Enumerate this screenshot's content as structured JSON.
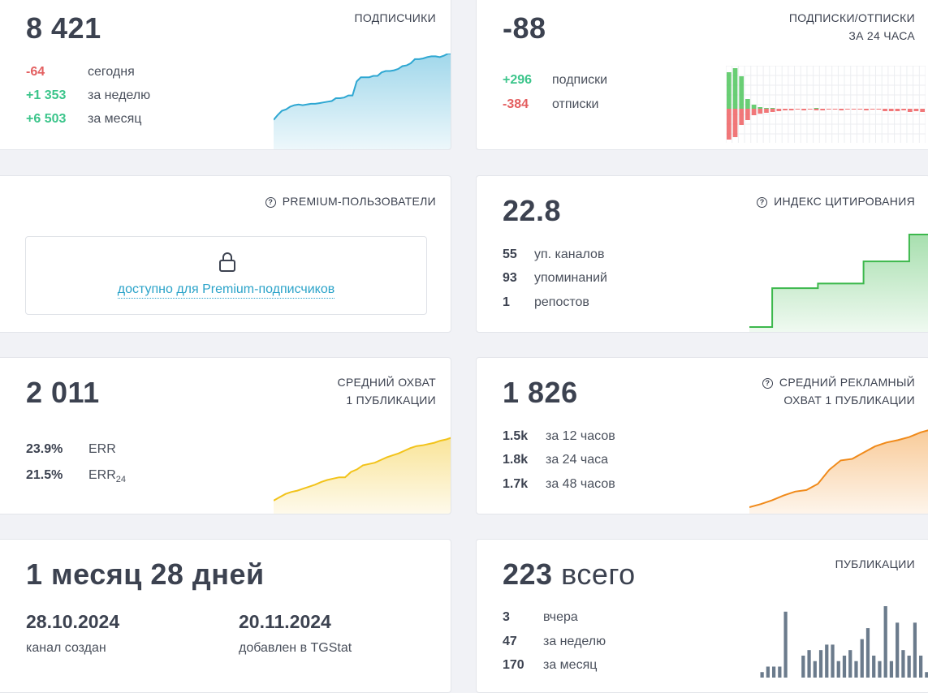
{
  "subscribers": {
    "title": "ПОДПИСЧИКИ",
    "value": "8 421",
    "rows": [
      {
        "value": "-64",
        "label": "сегодня"
      },
      {
        "value": "+1 353",
        "label": "за неделю"
      },
      {
        "value": "+6 503",
        "label": "за месяц"
      }
    ],
    "chart_data": {
      "type": "area",
      "values": [
        0.05,
        0.12,
        0.18,
        0.2,
        0.24,
        0.26,
        0.27,
        0.26,
        0.27,
        0.28,
        0.28,
        0.29,
        0.3,
        0.31,
        0.32,
        0.36,
        0.36,
        0.37,
        0.4,
        0.4,
        0.6,
        0.66,
        0.66,
        0.66,
        0.68,
        0.68,
        0.73,
        0.75,
        0.75,
        0.76,
        0.78,
        0.82,
        0.83,
        0.86,
        0.92,
        0.92,
        0.93,
        0.95,
        0.96,
        0.96,
        0.95,
        0.97,
        1.0,
        1.0
      ],
      "color": "#2ea7d2"
    }
  },
  "subs_unsubs": {
    "title_line1": "ПОДПИСКИ/ОТПИСКИ",
    "title_line2": "ЗА 24 ЧАСА",
    "value": "-88",
    "rows": [
      {
        "value": "+296",
        "label": "подписки"
      },
      {
        "value": "-384",
        "label": "отписки"
      }
    ],
    "chart_data": {
      "type": "bar",
      "positive": [
        45,
        50,
        40,
        12,
        5,
        2,
        1,
        1,
        0,
        0,
        0,
        0,
        0,
        0,
        1,
        0,
        0,
        0,
        0,
        0,
        0,
        0,
        0,
        0,
        0,
        0,
        0,
        0,
        0,
        0,
        0,
        0
      ],
      "negative": [
        -38,
        -35,
        -20,
        -14,
        -8,
        -6,
        -5,
        -4,
        -3,
        -2,
        -2,
        -1,
        -2,
        -1,
        -2,
        -2,
        -1,
        -1,
        -2,
        -1,
        -1,
        -1,
        -2,
        -1,
        -1,
        -3,
        -3,
        -3,
        -2,
        -4,
        -3,
        -4
      ],
      "pos_color": "#4fc65c",
      "neg_color": "#ef5f62"
    }
  },
  "premium": {
    "title": "PREMIUM-ПОЛЬЗОВАТЕЛИ",
    "link": "доступно для Premium-подписчиков",
    "lock_icon": "lock-icon"
  },
  "citation": {
    "title": "ИНДЕКС ЦИТИРОВАНИЯ",
    "value": "22.8",
    "rows": [
      {
        "value": "55",
        "label": "уп. каналов"
      },
      {
        "value": "93",
        "label": "упоминаний"
      },
      {
        "value": "1",
        "label": "репостов"
      }
    ],
    "chart_data": {
      "type": "area",
      "values": [
        0.0,
        0.0,
        0.0,
        0.42,
        0.42,
        0.42,
        0.42,
        0.42,
        0.42,
        0.47,
        0.47,
        0.47,
        0.47,
        0.47,
        0.47,
        0.71,
        0.71,
        0.71,
        0.71,
        0.71,
        0.71,
        1.0,
        1.0,
        1.0,
        1.0
      ],
      "step": true,
      "color": "#3cb84c"
    }
  },
  "reach": {
    "title_line1": "СРЕДНИЙ ОХВАТ",
    "title_line2": "1 ПУБЛИКАЦИИ",
    "value": "2 011",
    "rows": [
      {
        "value": "23.9%",
        "label": "ERR",
        "sub": ""
      },
      {
        "value": "21.5%",
        "label": "ERR",
        "sub": "24"
      }
    ],
    "chart_data": {
      "type": "area",
      "values": [
        0.05,
        0.1,
        0.15,
        0.18,
        0.2,
        0.23,
        0.26,
        0.29,
        0.33,
        0.36,
        0.38,
        0.4,
        0.4,
        0.48,
        0.52,
        0.58,
        0.6,
        0.62,
        0.66,
        0.7,
        0.73,
        0.76,
        0.8,
        0.84,
        0.87,
        0.88,
        0.9,
        0.92,
        0.95,
        0.97,
        1.0
      ],
      "color": "#f2c31a"
    }
  },
  "ad_reach": {
    "title_line1": "СРЕДНИЙ РЕКЛАМНЫЙ",
    "title_line2": "ОХВАТ 1 ПУБЛИКАЦИИ",
    "value": "1 826",
    "rows": [
      {
        "value": "1.5k",
        "label": "за 12 часов"
      },
      {
        "value": "1.8k",
        "label": "за 24 часа"
      },
      {
        "value": "1.7k",
        "label": "за 48 часов"
      }
    ],
    "chart_data": {
      "type": "area",
      "values": [
        0.0,
        0.04,
        0.09,
        0.15,
        0.2,
        0.22,
        0.3,
        0.48,
        0.6,
        0.62,
        0.7,
        0.78,
        0.83,
        0.86,
        0.9,
        0.96,
        1.0
      ],
      "color": "#f08a1a"
    }
  },
  "age": {
    "value": "1 месяц 28 дней",
    "created_date": "28.10.2024",
    "created_label": "канал создан",
    "added_date": "20.11.2024",
    "added_label": "добавлен в TGStat"
  },
  "publications": {
    "title": "ПУБЛИКАЦИИ",
    "value_num": "223",
    "value_word": "всего",
    "rows": [
      {
        "value": "3",
        "label": "вчера"
      },
      {
        "value": "47",
        "label": "за неделю"
      },
      {
        "value": "170",
        "label": "за месяц"
      }
    ],
    "chart_data": {
      "type": "bar",
      "values": [
        1,
        2,
        2,
        2,
        12,
        0,
        0,
        4,
        5,
        3,
        5,
        6,
        6,
        3,
        4,
        5,
        3,
        7,
        9,
        4,
        3,
        13,
        3,
        10,
        5,
        4,
        10,
        4,
        1
      ],
      "color": "#6b7b8c"
    }
  }
}
